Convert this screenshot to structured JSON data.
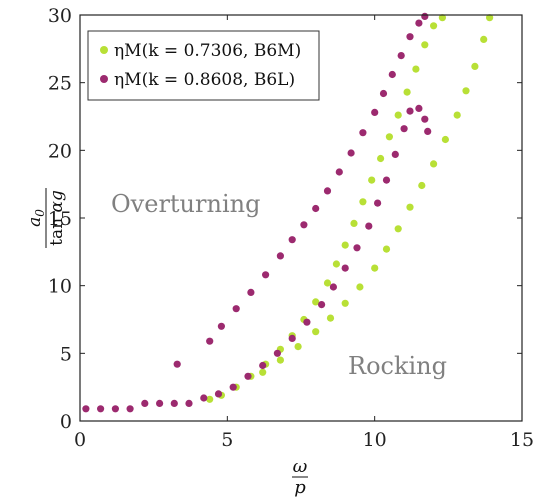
{
  "chart_data": {
    "type": "scatter",
    "xlabel": "ω/p",
    "ylabel": "a₀/tanαg",
    "xlim": [
      0,
      15
    ],
    "ylim": [
      0,
      30
    ],
    "x_ticks": [
      0,
      5,
      10,
      15
    ],
    "y_ticks": [
      0,
      5,
      10,
      15,
      20,
      25,
      30
    ],
    "grid": false,
    "legend_position": "top-left",
    "annotations": [
      "Overturning",
      "Rocking"
    ],
    "series": [
      {
        "name": "ηM(k = 0.7306, B6M)",
        "color": "#b8e036",
        "upper": [
          [
            4.4,
            1.6
          ],
          [
            4.8,
            1.9
          ],
          [
            5.3,
            2.5
          ],
          [
            5.8,
            3.3
          ],
          [
            6.3,
            4.2
          ],
          [
            6.8,
            5.3
          ],
          [
            7.2,
            6.3
          ],
          [
            7.6,
            7.5
          ],
          [
            8.0,
            8.8
          ],
          [
            8.4,
            10.2
          ],
          [
            8.7,
            11.6
          ],
          [
            9.0,
            13.0
          ],
          [
            9.3,
            14.6
          ],
          [
            9.6,
            16.2
          ],
          [
            9.9,
            17.8
          ],
          [
            10.2,
            19.4
          ],
          [
            10.5,
            21.0
          ],
          [
            10.8,
            22.6
          ],
          [
            11.1,
            24.3
          ],
          [
            11.4,
            26.0
          ],
          [
            11.7,
            27.8
          ],
          [
            12.0,
            29.2
          ],
          [
            12.3,
            29.8
          ]
        ],
        "lower": [
          [
            6.2,
            3.6
          ],
          [
            6.8,
            4.5
          ],
          [
            7.4,
            5.5
          ],
          [
            8.0,
            6.6
          ],
          [
            8.5,
            7.6
          ],
          [
            9.0,
            8.7
          ],
          [
            9.5,
            9.9
          ],
          [
            10.0,
            11.3
          ],
          [
            10.4,
            12.7
          ],
          [
            10.8,
            14.2
          ],
          [
            11.2,
            15.8
          ],
          [
            11.6,
            17.4
          ],
          [
            12.0,
            19.0
          ],
          [
            12.4,
            20.8
          ],
          [
            12.8,
            22.6
          ],
          [
            13.1,
            24.4
          ],
          [
            13.4,
            26.2
          ],
          [
            13.7,
            28.2
          ],
          [
            13.9,
            29.8
          ]
        ]
      },
      {
        "name": "ηM(k = 0.8608, B6L)",
        "color": "#9c2a6f",
        "baseline": [
          [
            0.2,
            0.9
          ],
          [
            0.7,
            0.9
          ],
          [
            1.2,
            0.9
          ],
          [
            1.7,
            0.9
          ],
          [
            2.2,
            1.3
          ],
          [
            2.7,
            1.3
          ],
          [
            3.2,
            1.3
          ],
          [
            3.7,
            1.3
          ],
          [
            4.2,
            1.7
          ]
        ],
        "isolated": [
          [
            3.3,
            4.2
          ]
        ],
        "upper": [
          [
            4.4,
            5.9
          ],
          [
            4.8,
            7.0
          ],
          [
            5.3,
            8.3
          ],
          [
            5.8,
            9.5
          ],
          [
            6.3,
            10.8
          ],
          [
            6.8,
            12.2
          ],
          [
            7.2,
            13.4
          ],
          [
            7.6,
            14.5
          ],
          [
            8.0,
            15.7
          ],
          [
            8.4,
            17.0
          ],
          [
            8.8,
            18.4
          ],
          [
            9.2,
            19.8
          ],
          [
            9.6,
            21.3
          ],
          [
            10.0,
            22.8
          ],
          [
            10.3,
            24.2
          ],
          [
            10.6,
            25.6
          ],
          [
            10.9,
            27.0
          ],
          [
            11.2,
            28.4
          ],
          [
            11.5,
            29.4
          ],
          [
            11.7,
            29.9
          ]
        ],
        "lower": [
          [
            4.7,
            2.0
          ],
          [
            5.2,
            2.5
          ],
          [
            5.7,
            3.3
          ],
          [
            6.2,
            4.1
          ],
          [
            6.7,
            5.0
          ],
          [
            7.2,
            6.1
          ],
          [
            7.7,
            7.3
          ],
          [
            8.2,
            8.6
          ],
          [
            8.6,
            9.9
          ],
          [
            9.0,
            11.3
          ],
          [
            9.4,
            12.8
          ],
          [
            9.8,
            14.4
          ],
          [
            10.1,
            16.1
          ],
          [
            10.4,
            17.8
          ],
          [
            10.7,
            19.7
          ],
          [
            11.0,
            21.6
          ],
          [
            11.2,
            22.9
          ],
          [
            11.5,
            23.1
          ],
          [
            11.7,
            22.3
          ],
          [
            11.8,
            21.4
          ]
        ]
      }
    ]
  }
}
